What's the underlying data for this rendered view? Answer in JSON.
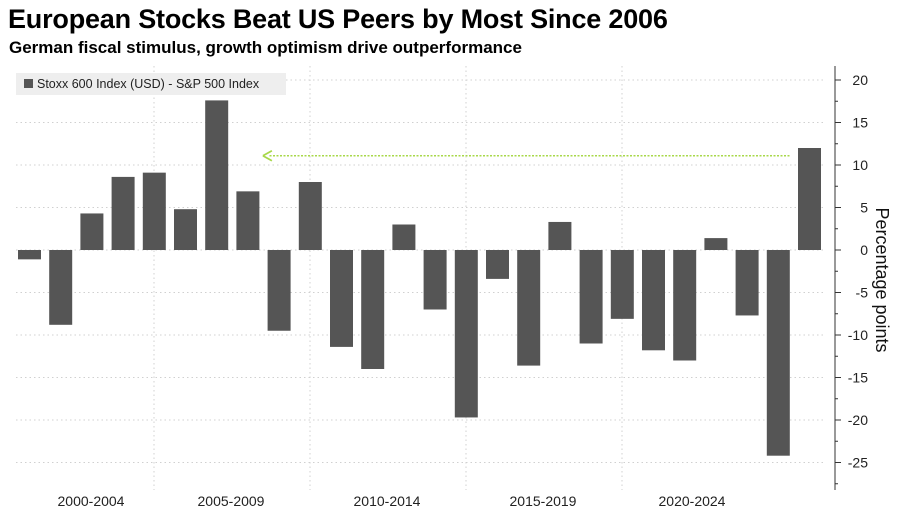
{
  "header": {
    "title": "European Stocks Beat US Peers by Most Since 2006",
    "subtitle": "German fiscal stimulus, growth optimism drive outperformance"
  },
  "colors": {
    "bar": "#555555",
    "arrow": "#a8d84a",
    "grid": "#d0d0d0",
    "legend_bg": "#eeeeee"
  },
  "chart_data": {
    "type": "bar",
    "title": "European Stocks Beat US Peers by Most Since 2006",
    "subtitle": "German fiscal stimulus, growth optimism drive outperformance",
    "ylabel": "Percentage points",
    "ylim": [
      -28,
      20
    ],
    "yticks": [
      20,
      15,
      10,
      5,
      0,
      -5,
      -10,
      -15,
      -20,
      -25
    ],
    "y_axis_side": "right",
    "grid": true,
    "legend_position": "top-left",
    "series": [
      {
        "name": "Stoxx 600 Index (USD) - S&P 500 Index",
        "values": [
          -1.1,
          -8.8,
          4.3,
          8.6,
          9.1,
          4.8,
          17.6,
          6.9,
          -9.5,
          8.0,
          -11.4,
          -14.0,
          3.0,
          -7.0,
          -19.7,
          -3.4,
          -13.6,
          3.3,
          -11.0,
          -8.1,
          -11.8,
          -13.0,
          1.4,
          -7.7,
          -24.2,
          12.0
        ]
      }
    ],
    "x_group_labels": [
      "2000-2004",
      "2005-2009",
      "2010-2014",
      "2015-2019",
      "2020-2024"
    ],
    "annotation": {
      "type": "arrow",
      "level": 11,
      "from_bar": 25,
      "to_bar": 7
    }
  }
}
